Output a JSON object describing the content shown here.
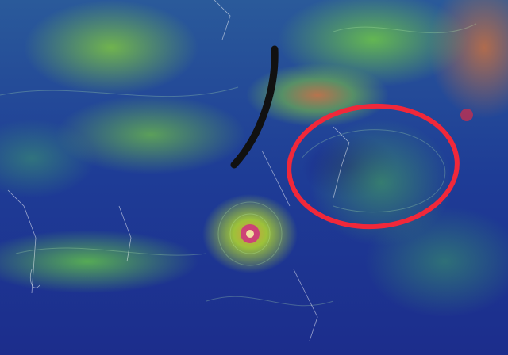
{
  "map": {
    "type": "wind-flow-map",
    "colors": {
      "calm": "#1c2d8c",
      "moderate": "#6cc03c",
      "strong": "#c87a46",
      "typhoon_core": "#d03080"
    }
  },
  "annotations": {
    "circle": {
      "color": "#f0283a"
    },
    "line": {
      "color": "#111111"
    }
  }
}
